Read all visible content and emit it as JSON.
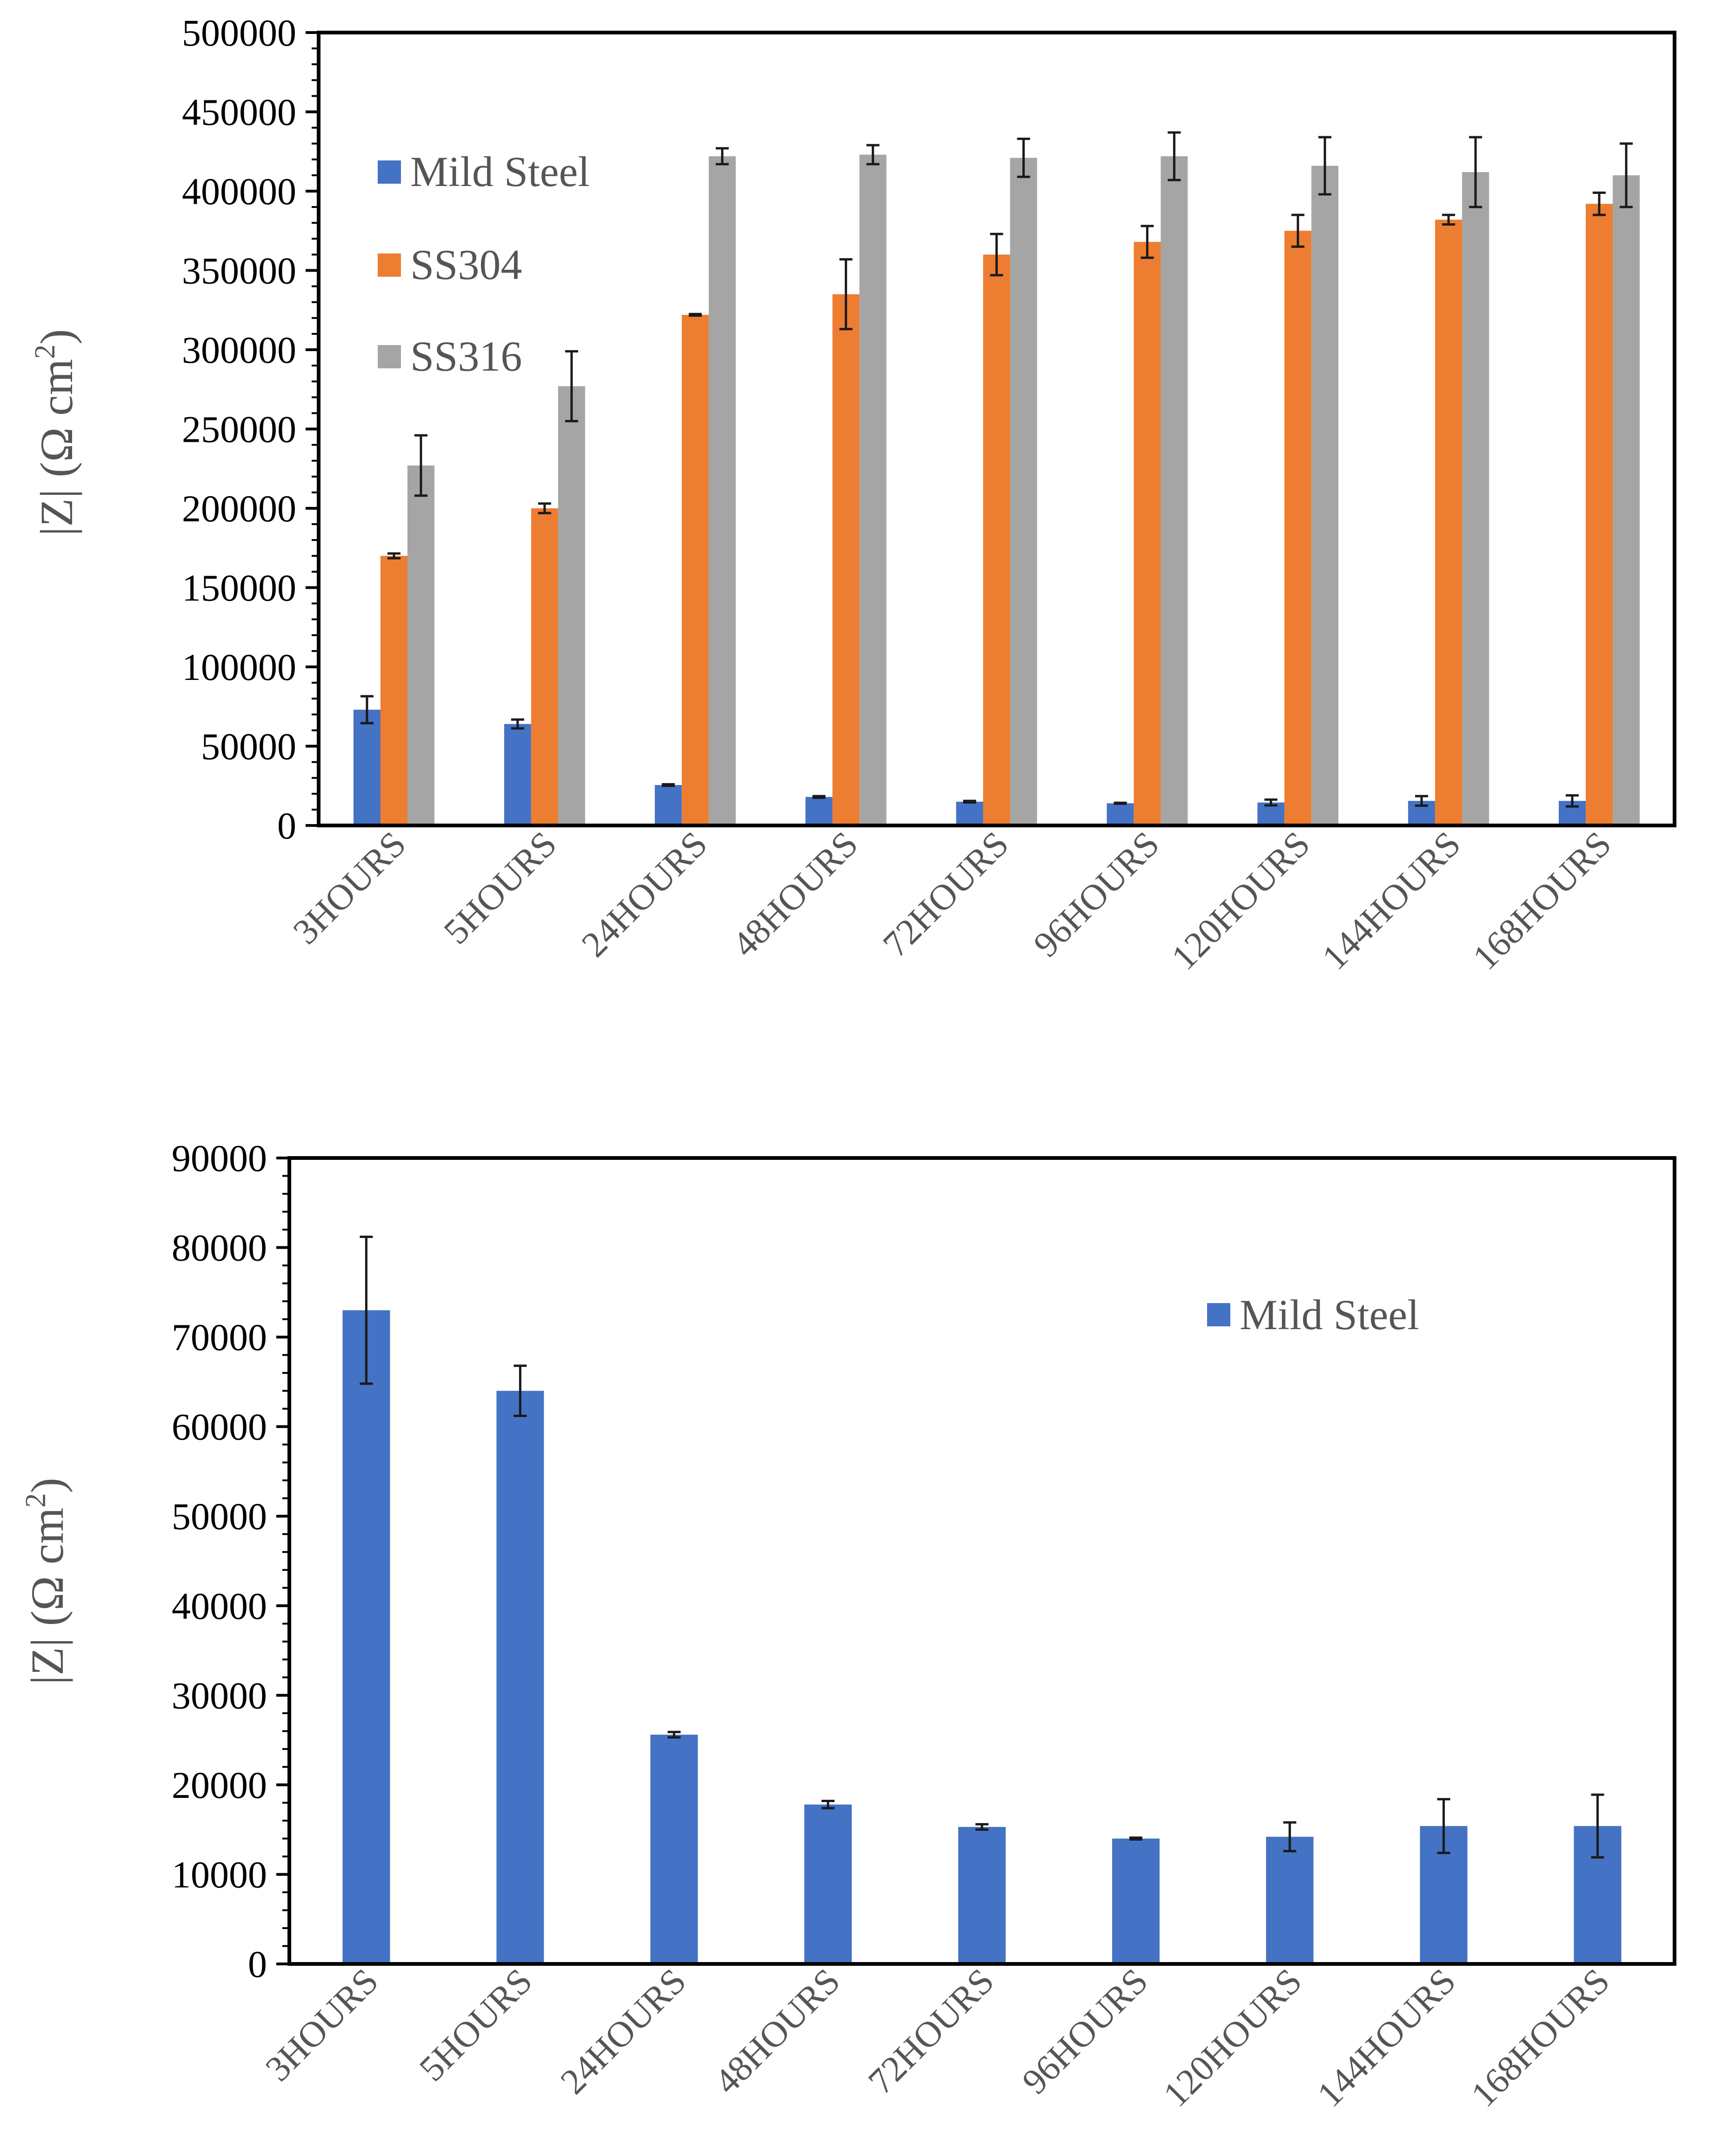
{
  "colors": {
    "mild_steel": "#4472c4",
    "ss304": "#ed7d31",
    "ss316": "#a5a5a5",
    "axis": "#000000",
    "label": "#555555"
  },
  "chart_data": [
    {
      "type": "bar",
      "categories": [
        "3HOURS",
        "5HOURS",
        "24HOURS",
        "48HOURS",
        "72HOURS",
        "96HOURS",
        "120HOURS",
        "144HOURS",
        "168HOURS"
      ],
      "series": [
        {
          "name": "Mild Steel",
          "color_key": "mild_steel",
          "values": [
            73000,
            64000,
            25500,
            18000,
            15000,
            14000,
            14500,
            15500,
            15500
          ],
          "errors": [
            8500,
            2800,
            500,
            500,
            500,
            300,
            1800,
            3000,
            3500
          ]
        },
        {
          "name": "SS304",
          "color_key": "ss304",
          "values": [
            170000,
            200000,
            322000,
            335000,
            360000,
            368000,
            375000,
            382000,
            392000
          ],
          "errors": [
            1500,
            3000,
            500,
            22000,
            13000,
            10000,
            10000,
            3000,
            7000
          ]
        },
        {
          "name": "SS316",
          "color_key": "ss316",
          "values": [
            227000,
            277000,
            422000,
            423000,
            421000,
            422000,
            416000,
            412000,
            410000
          ],
          "errors": [
            19000,
            22000,
            5000,
            6000,
            12000,
            15000,
            18000,
            22000,
            20000
          ]
        }
      ],
      "title": "",
      "xlabel": "",
      "ylabel": "|Z| (Ω cm²)",
      "ylabel_main": "|Z| (Ω cm",
      "ylabel_sup": "2",
      "ylabel_tail": ")",
      "ylim": [
        0,
        500000
      ],
      "ystep": 50000,
      "yticks": [
        "0",
        "50000",
        "100000",
        "150000",
        "200000",
        "250000",
        "300000",
        "350000",
        "400000",
        "450000",
        "500000"
      ],
      "legend": [
        "Mild Steel",
        "SS304",
        "SS316"
      ],
      "legend_position": "top-left"
    },
    {
      "type": "bar",
      "categories": [
        "3HOURS",
        "5HOURS",
        "24HOURS",
        "48HOURS",
        "72HOURS",
        "96HOURS",
        "120HOURS",
        "144HOURS",
        "168HOURS"
      ],
      "series": [
        {
          "name": "Mild Steel",
          "color_key": "mild_steel",
          "values": [
            73000,
            64000,
            25600,
            17800,
            15300,
            14000,
            14200,
            15400,
            15400
          ],
          "errors": [
            8200,
            2800,
            300,
            400,
            300,
            100,
            1600,
            3000,
            3500
          ]
        }
      ],
      "title": "",
      "xlabel": "",
      "ylabel": "|Z| (Ω cm²)",
      "ylabel_main": "|Z| (Ω cm",
      "ylabel_sup": "2",
      "ylabel_tail": ")",
      "ylim": [
        0,
        90000
      ],
      "ystep": 10000,
      "yticks": [
        "0",
        "10000",
        "20000",
        "30000",
        "40000",
        "50000",
        "60000",
        "70000",
        "80000",
        "90000"
      ],
      "legend": [
        "Mild Steel"
      ],
      "legend_position": "top-right"
    }
  ]
}
